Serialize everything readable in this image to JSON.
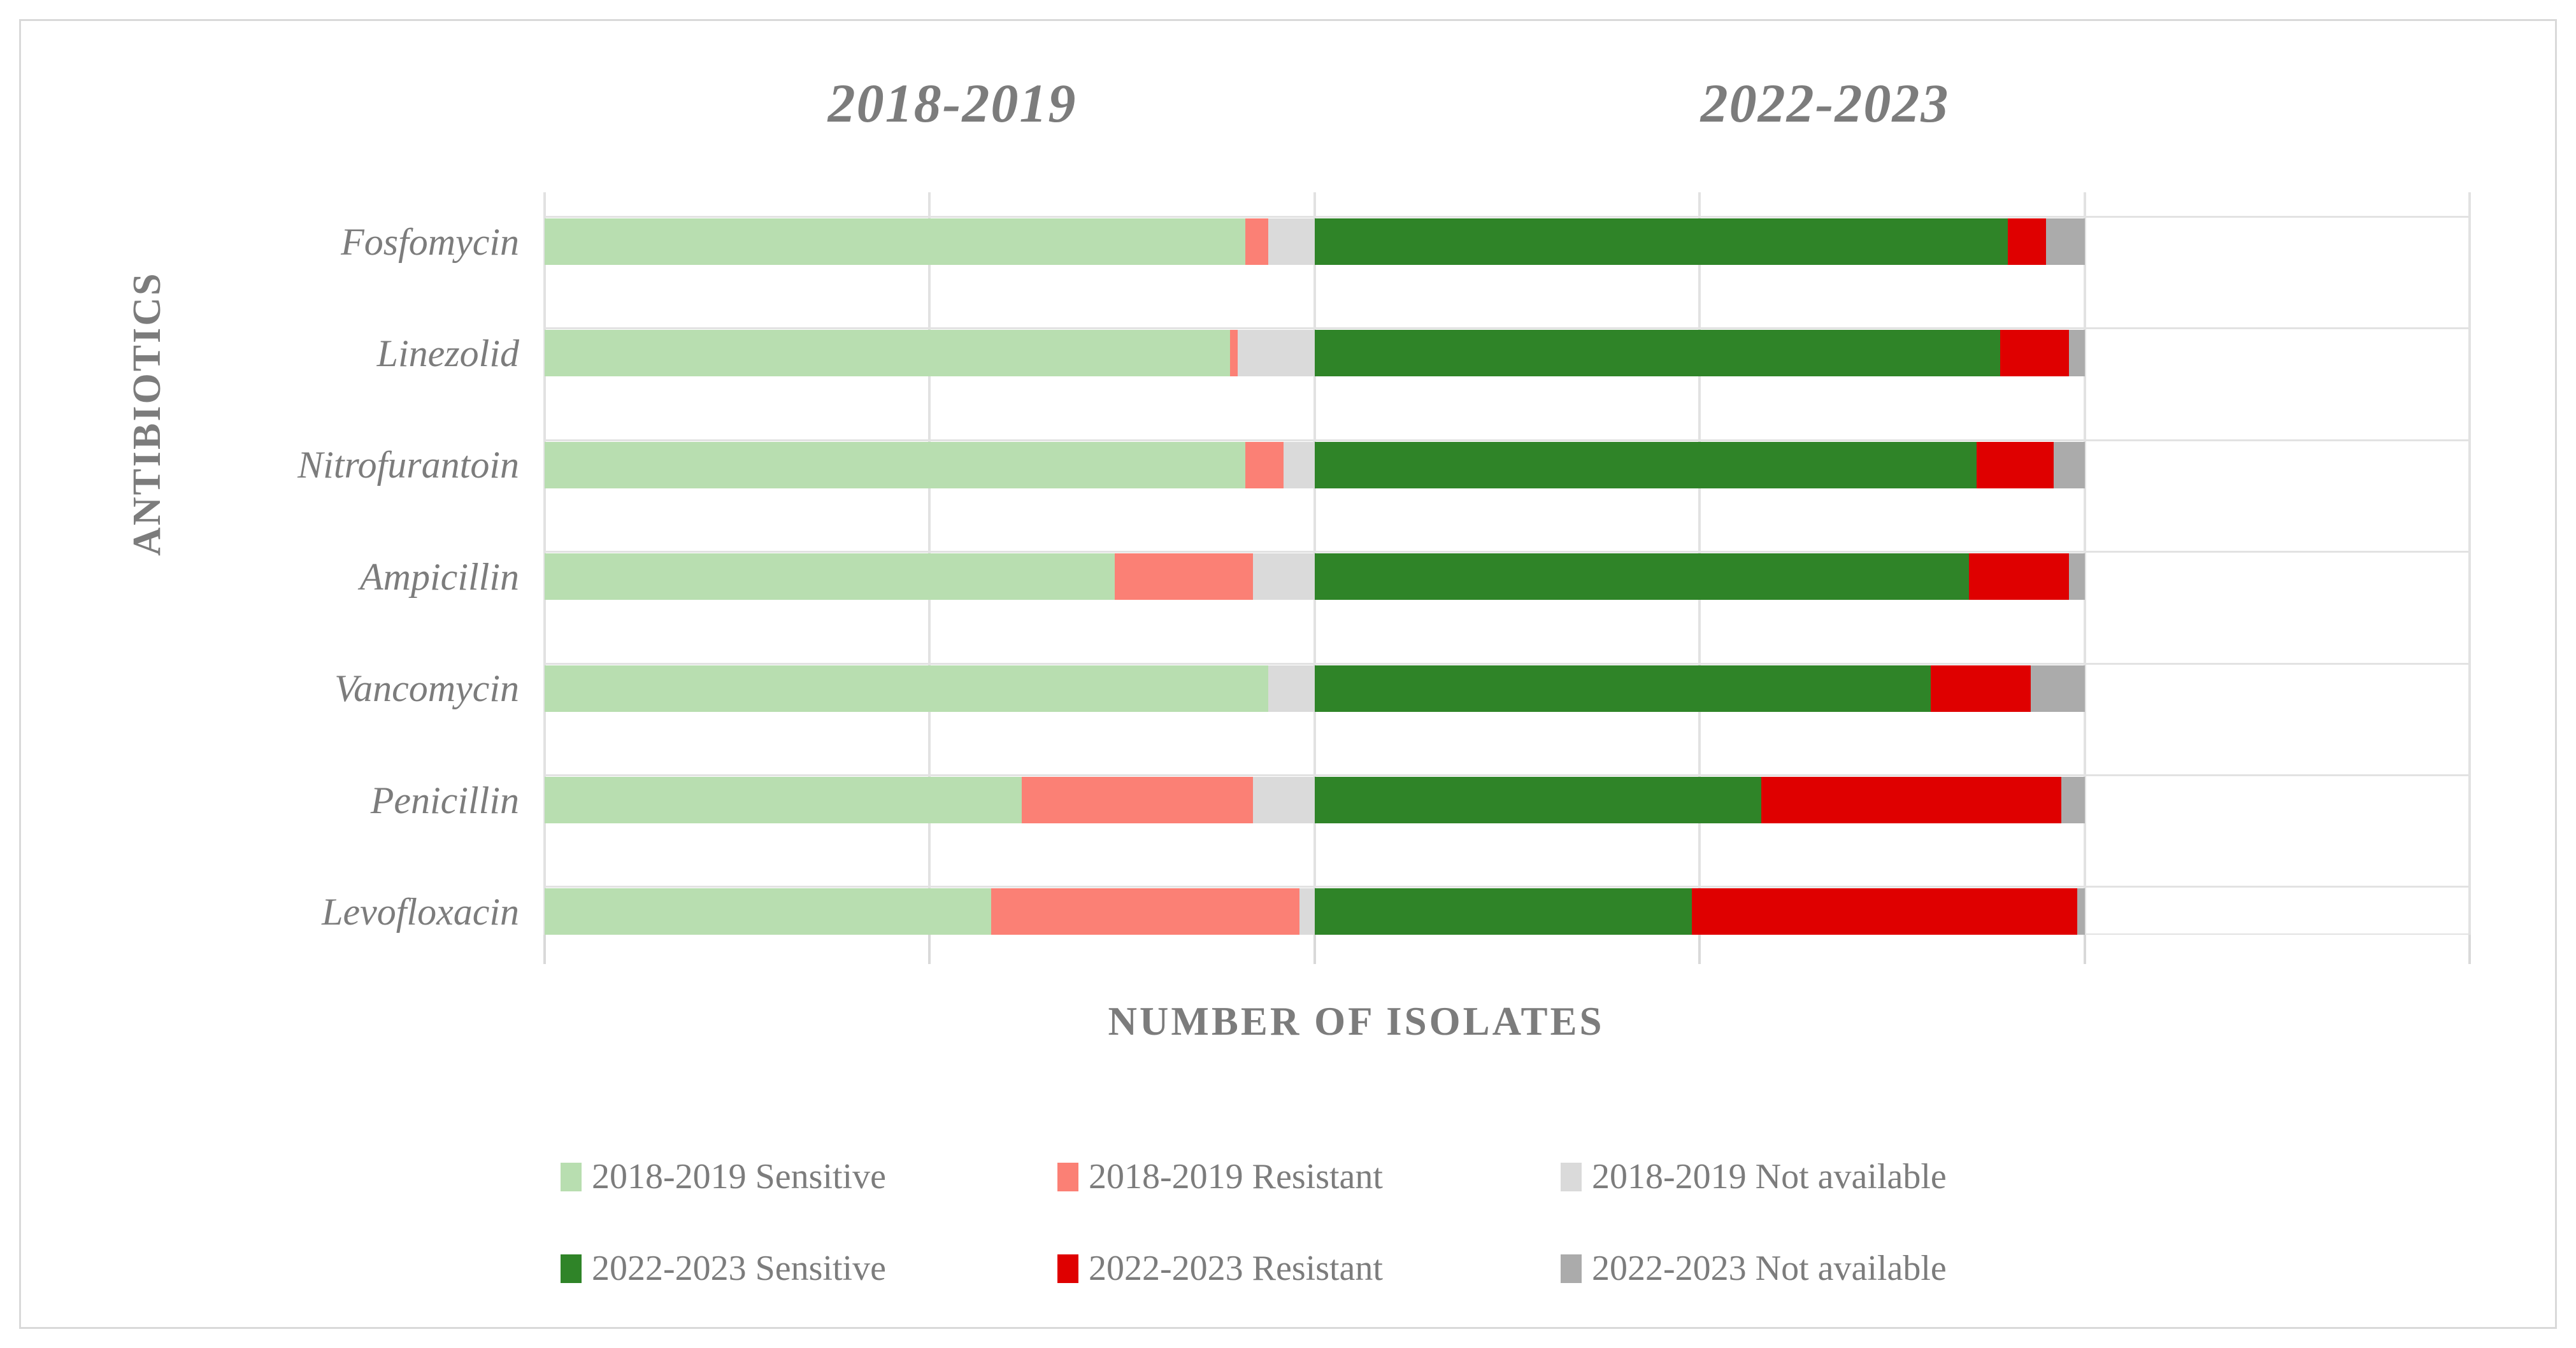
{
  "chart_data": {
    "type": "bar",
    "orientation": "horizontal-stacked",
    "title": "",
    "group_titles": [
      "2018-2019",
      "2022-2023"
    ],
    "xlabel": "NUMBER OF ISOLATES",
    "ylabel": "ANTIBIOTICS",
    "categories": [
      "Fosfomycin",
      "Linezolid",
      "Nitrofurantoin",
      "Ampicillin",
      "Vancomycin",
      "Penicillin",
      "Levofloxacin"
    ],
    "series": [
      {
        "name": "2018-2019 Sensitive",
        "group": "2018-2019",
        "color": "#b8deb0",
        "values": [
          91,
          89,
          91,
          74,
          94,
          62,
          58
        ]
      },
      {
        "name": "2018-2019 Resistant",
        "group": "2018-2019",
        "color": "#fb8075",
        "values": [
          3,
          1,
          5,
          18,
          0,
          30,
          40
        ]
      },
      {
        "name": "2018-2019 Not available",
        "group": "2018-2019",
        "color": "#dadada",
        "values": [
          6,
          10,
          4,
          8,
          6,
          8,
          2
        ]
      },
      {
        "name": "2022-2023 Sensitive",
        "group": "2022-2023",
        "color": "#2f8428",
        "values": [
          90,
          89,
          86,
          85,
          80,
          58,
          49
        ]
      },
      {
        "name": "2022-2023 Resistant",
        "group": "2022-2023",
        "color": "#df0000",
        "values": [
          5,
          9,
          10,
          13,
          13,
          39,
          50
        ]
      },
      {
        "name": "2022-2023 Not available",
        "group": "2022-2023",
        "color": "#ababab",
        "values": [
          5,
          2,
          4,
          2,
          7,
          3,
          1
        ]
      }
    ],
    "group_offsets": {
      "2018-2019": 0,
      "2022-2023": 100
    },
    "x_axis": {
      "min": 0,
      "max": 250,
      "gridline_interval": 50,
      "tick_labels_visible": false,
      "grid": true
    },
    "legend_position": "bottom",
    "text_color": "#7c7c7c",
    "gridline_color": "#e2e2e2"
  }
}
